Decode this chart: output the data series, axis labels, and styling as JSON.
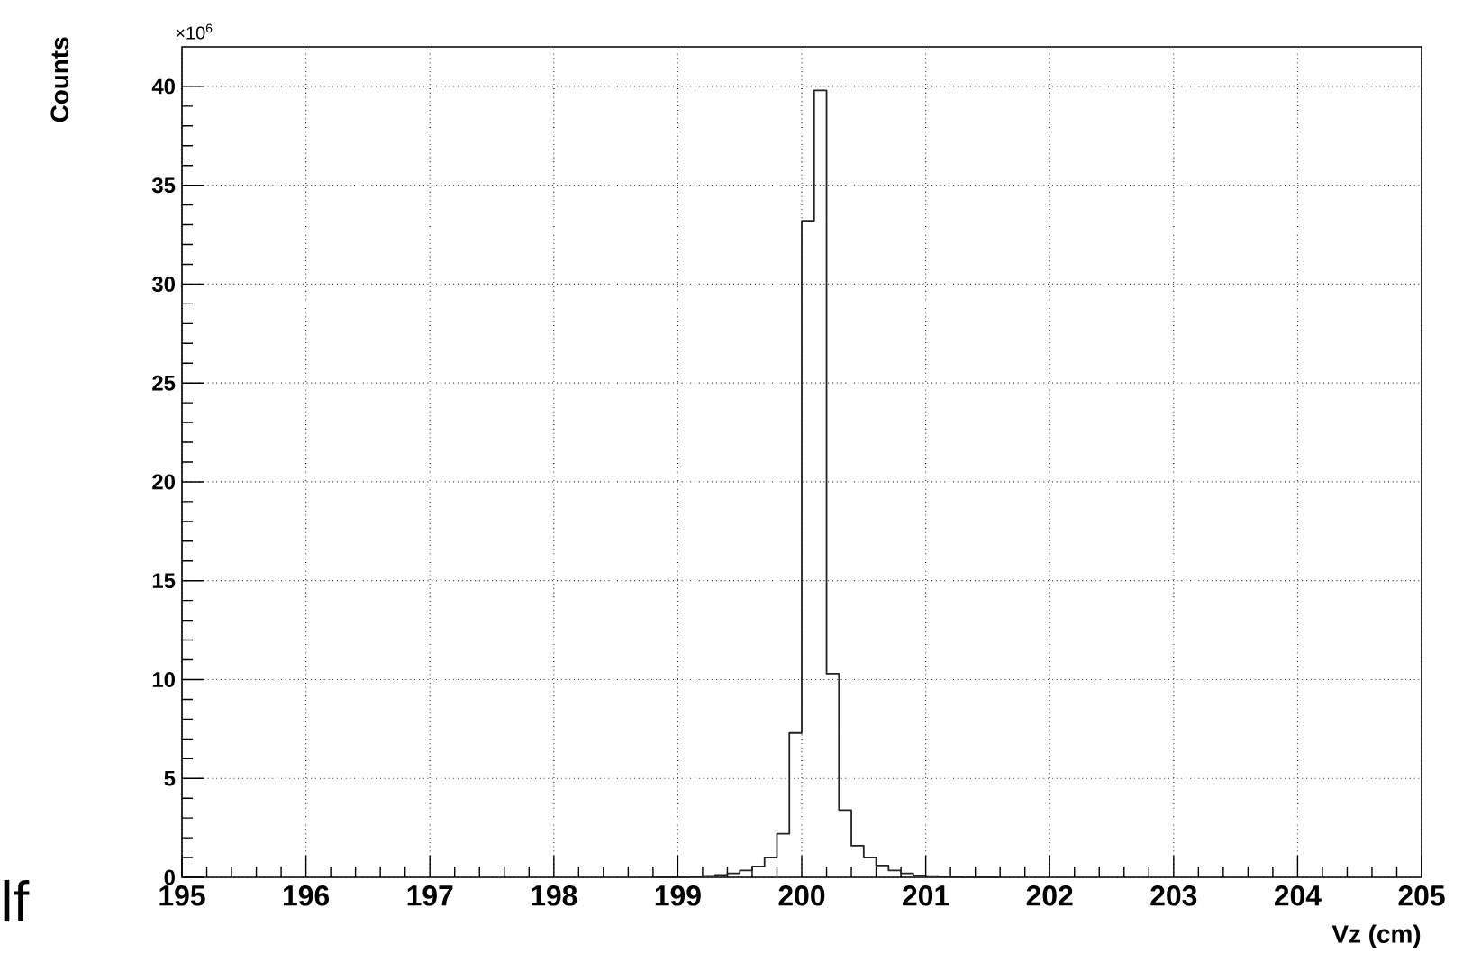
{
  "chart_data": {
    "type": "histogram",
    "xlabel": "Vz (cm)",
    "ylabel": "Counts",
    "annotations": [
      "×10$^{6}$",
      "lf"
    ],
    "bins": [
      198.8,
      198.9,
      199.0,
      199.1,
      199.2,
      199.3,
      199.4,
      199.5,
      199.6,
      199.7,
      199.8,
      199.9,
      200.0,
      200.1,
      200.2,
      200.3,
      200.4,
      200.5,
      200.6,
      200.7,
      200.8,
      200.9,
      201.0,
      201.1,
      201.2,
      201.3,
      201.4,
      201.5,
      201.6
    ],
    "values": [
      0.01,
      0.01,
      0.02,
      0.04,
      0.07,
      0.12,
      0.2,
      0.35,
      0.55,
      1.0,
      2.2,
      7.3,
      33.2,
      39.8,
      10.3,
      3.4,
      1.6,
      1.0,
      0.6,
      0.35,
      0.2,
      0.1,
      0.06,
      0.04,
      0.03,
      0.02,
      0.01,
      0.01
    ],
    "color": "#222222",
    "xlim": [
      195,
      205
    ],
    "ylim": [
      0,
      42
    ],
    "xticks": [
      195,
      196,
      197,
      198,
      199,
      200,
      201,
      202,
      203,
      204,
      205
    ],
    "yticks": [
      0,
      5,
      10,
      15,
      20,
      25,
      30,
      35,
      40
    ],
    "grid": true
  }
}
